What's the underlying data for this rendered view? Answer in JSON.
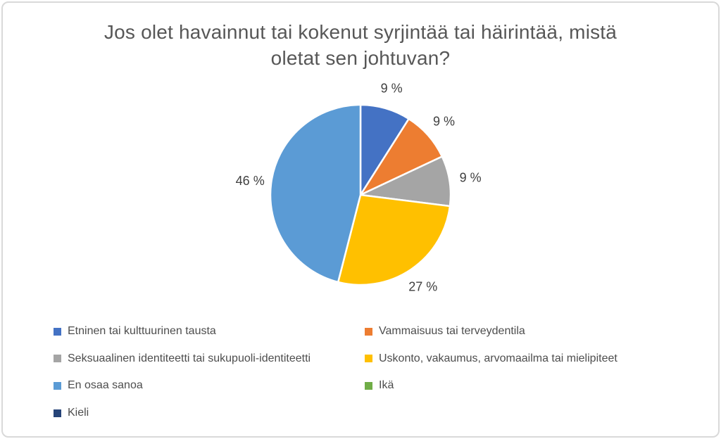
{
  "chart_data": {
    "type": "pie",
    "title": "Jos olet havainnut tai kokenut syrjintää tai häirintää, mistä oletat sen johtuvan?",
    "title_lines": [
      "Jos olet havainnut tai kokenut syrjintää tai häirintää, mistä",
      "oletat sen johtuvan?"
    ],
    "unit": "%",
    "start_angle_deg": 0,
    "clockwise": true,
    "legend_position": "bottom",
    "grid": "off",
    "slices": [
      {
        "name": "Etninen tai kulttuurinen tausta",
        "value": 9,
        "label": "9 %",
        "color": "#4472C4"
      },
      {
        "name": "Vammaisuus tai terveydentila",
        "value": 9,
        "label": "9 %",
        "color": "#ED7D31"
      },
      {
        "name": "Seksuaalinen identiteetti tai sukupuoli-identiteetti",
        "value": 9,
        "label": "9 %",
        "color": "#A5A5A5"
      },
      {
        "name": "Uskonto, vakaumus, arvomaailma tai mielipiteet",
        "value": 27,
        "label": "27 %",
        "color": "#FFC000"
      },
      {
        "name": "En osaa sanoa",
        "value": 46,
        "label": "46 %",
        "color": "#5B9BD5"
      },
      {
        "name": "Ikä",
        "value": 0,
        "label": "",
        "color": "#70AD47"
      },
      {
        "name": "Kieli",
        "value": 0,
        "label": "",
        "color": "#264478"
      }
    ],
    "label_text_color": "#3f3f3f",
    "slice_border_color": "#ffffff"
  }
}
